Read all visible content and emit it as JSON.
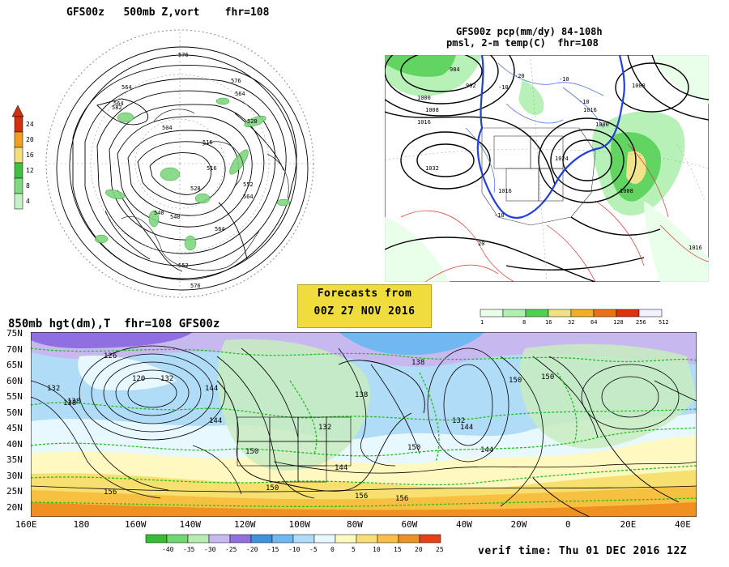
{
  "panel1": {
    "title": "GFS00z   500mb Z,vort    fhr=108",
    "contour_labels": [
      "576",
      "564",
      "576",
      "564",
      "528",
      "504",
      "516",
      "564",
      "540",
      "528",
      "552",
      "564",
      "576",
      "564",
      "540",
      "582",
      "516",
      "552"
    ],
    "colorbar": {
      "labels": [
        "24",
        "20",
        "16",
        "12",
        "8",
        "4"
      ],
      "colors": [
        "#d03010",
        "#f0a020",
        "#f0e080",
        "#40c040",
        "#80d880",
        "#c8f0c8"
      ]
    }
  },
  "panel2": {
    "title_line1": "GFS00z pcp(mm/dy) 84-108h",
    "title_line2": "pmsl, 2-m temp(C)  fhr=108",
    "contour_labels": [
      "984",
      "992",
      "1000",
      "1008",
      "1016",
      "1032",
      "1016",
      "1024",
      "1008",
      "1000",
      "1016",
      "1008",
      "1016",
      "-10",
      "-20",
      "-10",
      "-10",
      "-10",
      "20"
    ],
    "colorbar": {
      "labels": [
        "1",
        "8",
        "16",
        "32",
        "64",
        "128",
        "256",
        "512"
      ],
      "colors": [
        "#e8ffe8",
        "#b0f0b0",
        "#50d050",
        "#f0e080",
        "#f0b020",
        "#f07010",
        "#e03010",
        "#f0f0ff"
      ]
    }
  },
  "forecast": {
    "line1": "Forecasts from",
    "line2": "00Z 27 NOV 2016"
  },
  "panel3": {
    "title": "850mb hgt(dm),T  fhr=108 GFS00z",
    "lat_labels": [
      "75N",
      "70N",
      "65N",
      "60N",
      "55N",
      "50N",
      "45N",
      "40N",
      "35N",
      "30N",
      "25N",
      "20N"
    ],
    "lon_labels": [
      "160E",
      "180",
      "160W",
      "140W",
      "120W",
      "100W",
      "80W",
      "60W",
      "40W",
      "20W",
      "0",
      "20E",
      "40E"
    ],
    "contour_labels": [
      "126",
      "132",
      "120",
      "132",
      "138",
      "144",
      "138",
      "144",
      "156",
      "150",
      "138",
      "132",
      "150",
      "144",
      "156",
      "150",
      "156",
      "150",
      "144",
      "132",
      "138",
      "144",
      "150"
    ],
    "colorbar": {
      "labels": [
        "-40",
        "-35",
        "-30",
        "-25",
        "-20",
        "-15",
        "-10",
        "-5",
        "0",
        "5",
        "10",
        "15",
        "20",
        "25"
      ],
      "colors": [
        "#30c030",
        "#70d870",
        "#b8ecb0",
        "#c8b8f0",
        "#9070e0",
        "#4090e0",
        "#70b8f0",
        "#b0dcf8",
        "#e8f8ff",
        "#fff8c0",
        "#f8e070",
        "#f8c040",
        "#f09020",
        "#e84010"
      ]
    }
  },
  "verif": "verif time: Thu 01 DEC 2016 12Z",
  "colors": {
    "land_green": "#c8ecc0",
    "ocean_blue": "#a8d8f0",
    "warm_orange": "#f8c060",
    "contour_black": "#000000",
    "isotherm_green": "#20c020"
  }
}
